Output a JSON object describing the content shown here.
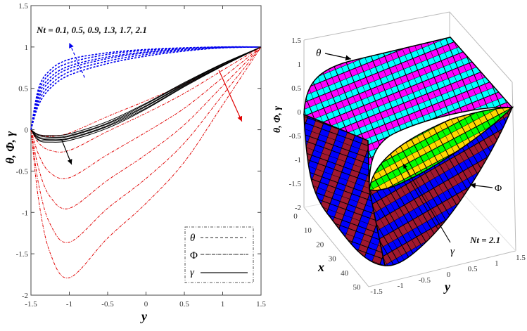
{
  "chart_data": [
    {
      "type": "line",
      "title": "",
      "xlabel": "y",
      "ylabel": "θ, Φ, γ",
      "xlim": [
        -1.5,
        1.5
      ],
      "ylim": [
        -2,
        1.5
      ],
      "xticks": [
        "-1.5",
        "-1",
        "-0.5",
        "0",
        "0.5",
        "1",
        "1.5"
      ],
      "yticks": [
        "1.5",
        "1",
        "0.5",
        "0",
        "-0.5",
        "-1",
        "-1.5",
        "-2"
      ],
      "grid": false,
      "annotation": "Nt = 0.1, 0.5, 0.9, 1.3, 1.7, 2.1",
      "Nt": [
        0.1,
        0.5,
        0.9,
        1.3,
        1.7,
        2.1
      ],
      "legend": {
        "placement": "bottom-right",
        "entries": [
          {
            "label": "θ",
            "style": "dashed"
          },
          {
            "label": "Φ",
            "style": "dash-dot"
          },
          {
            "label": "γ",
            "style": "solid"
          }
        ]
      },
      "x": [
        -1.5,
        -1.4,
        -1.25,
        -1,
        -0.5,
        0,
        0.5,
        1,
        1.5
      ],
      "series": [
        {
          "name": "θ",
          "color": "#0000ee",
          "style": "dashed",
          "curves": [
            [
              0,
              0.3,
              0.5,
              0.66,
              0.8,
              0.89,
              0.95,
              0.99,
              1
            ],
            [
              0,
              0.34,
              0.54,
              0.7,
              0.83,
              0.91,
              0.96,
              0.99,
              1
            ],
            [
              0,
              0.38,
              0.59,
              0.74,
              0.86,
              0.93,
              0.97,
              0.995,
              1
            ],
            [
              0,
              0.42,
              0.63,
              0.77,
              0.88,
              0.94,
              0.98,
              1,
              1
            ],
            [
              0,
              0.46,
              0.68,
              0.81,
              0.91,
              0.96,
              0.985,
              1,
              1
            ],
            [
              0,
              0.5,
              0.72,
              0.85,
              0.93,
              0.97,
              0.99,
              1,
              1
            ]
          ]
        },
        {
          "name": "Φ",
          "color": "#e00000",
          "style": "dash-dot",
          "curves": [
            [
              0,
              -0.06,
              -0.08,
              -0.04,
              0.16,
              0.35,
              0.55,
              0.78,
              1
            ],
            [
              0,
              -0.16,
              -0.25,
              -0.25,
              -0.02,
              0.2,
              0.44,
              0.72,
              1
            ],
            [
              0,
              -0.3,
              -0.52,
              -0.58,
              -0.3,
              -0.03,
              0.26,
              0.63,
              1
            ],
            [
              0,
              -0.47,
              -0.81,
              -0.95,
              -0.61,
              -0.3,
              0.06,
              0.53,
              1
            ],
            [
              0,
              -0.66,
              -1.14,
              -1.36,
              -0.95,
              -0.59,
              -0.16,
              0.42,
              1
            ],
            [
              0,
              -0.85,
              -1.49,
              -1.79,
              -1.31,
              -0.89,
              -0.39,
              0.3,
              1
            ]
          ]
        },
        {
          "name": "γ",
          "color": "#000000",
          "style": "solid",
          "curves": [
            [
              0,
              -0.06,
              -0.07,
              -0.05,
              0.1,
              0.32,
              0.57,
              0.8,
              1
            ],
            [
              0,
              -0.07,
              -0.09,
              -0.07,
              0.08,
              0.31,
              0.56,
              0.795,
              1
            ],
            [
              0,
              -0.09,
              -0.1,
              -0.08,
              0.07,
              0.29,
              0.55,
              0.79,
              1
            ],
            [
              0,
              -0.1,
              -0.12,
              -0.1,
              0.05,
              0.28,
              0.54,
              0.78,
              1
            ],
            [
              0,
              -0.12,
              -0.13,
              -0.11,
              0.04,
              0.26,
              0.53,
              0.775,
              1
            ],
            [
              0,
              -0.13,
              -0.15,
              -0.13,
              0.02,
              0.25,
              0.52,
              0.77,
              1
            ]
          ]
        }
      ],
      "arrows": [
        {
          "name": "theta-trend",
          "from": [
            -0.8,
            0.63
          ],
          "to": [
            -1.0,
            1.05
          ],
          "color": "#0000ee",
          "dashed": true
        },
        {
          "name": "phi-trend",
          "from": [
            0.95,
            0.72
          ],
          "to": [
            1.25,
            0.1
          ],
          "color": "#e00000",
          "dashed": false
        },
        {
          "name": "gamma-trend",
          "from": [
            -1.1,
            -0.12
          ],
          "to": [
            -0.97,
            -0.42
          ],
          "color": "#000000",
          "dashed": false
        }
      ]
    },
    {
      "type": "surface",
      "zlabel": "θ, Φ, γ",
      "xlabel": "x",
      "ylabel": "y",
      "zticks": [
        "1.5",
        "1",
        "0.5",
        "0",
        "-0.5",
        "-1",
        "-1.5",
        "-2"
      ],
      "xticks": [
        "0",
        "10",
        "20",
        "30",
        "40",
        "50"
      ],
      "yticks": [
        "-1.5",
        "-1",
        "-0.5",
        "0",
        "0.5",
        "1",
        "1.5"
      ],
      "zlim": [
        -2,
        1.5
      ],
      "xlim": [
        0,
        50
      ],
      "ylim": [
        -1.5,
        1.5
      ],
      "annotation": "Nt = 2.1",
      "surface_labels": [
        "θ",
        "Φ",
        "γ"
      ],
      "colors": {
        "theta": [
          "#00ffff",
          "#ff00ff"
        ],
        "phi": [
          "#0000ff",
          "#a0182f"
        ],
        "gamma": [
          "#ffd700",
          "#00ff00"
        ]
      }
    }
  ]
}
